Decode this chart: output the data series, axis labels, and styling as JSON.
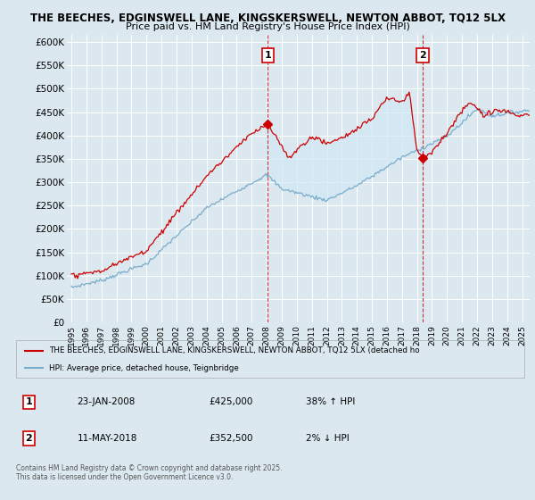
{
  "title_line1": "THE BEECHES, EDGINSWELL LANE, KINGSKERSWELL, NEWTON ABBOT, TQ12 5LX",
  "title_line2": "Price paid vs. HM Land Registry's House Price Index (HPI)",
  "ylabel_ticks": [
    "£0",
    "£50K",
    "£100K",
    "£150K",
    "£200K",
    "£250K",
    "£300K",
    "£350K",
    "£400K",
    "£450K",
    "£500K",
    "£550K",
    "£600K"
  ],
  "ytick_values": [
    0,
    50000,
    100000,
    150000,
    200000,
    250000,
    300000,
    350000,
    400000,
    450000,
    500000,
    550000,
    600000
  ],
  "ylim": [
    0,
    615000
  ],
  "xlim_start": 1994.7,
  "xlim_end": 2025.5,
  "color_price": "#cc0000",
  "color_hpi": "#7aadcc",
  "color_fill": "#d0e8f5",
  "vline_color": "#cc0000",
  "bg_color": "#dce8f0",
  "grid_color": "#ffffff",
  "event1_x": 2008.07,
  "event1_y": 425000,
  "event1_label": "1",
  "event2_x": 2018.37,
  "event2_y": 352500,
  "event2_label": "2",
  "legend_line1": "THE BEECHES, EDGINSWELL LANE, KINGSKERSWELL, NEWTON ABBOT, TQ12 5LX (detached ho",
  "legend_line2": "HPI: Average price, detached house, Teignbridge",
  "table_row1": [
    "1",
    "23-JAN-2008",
    "£425,000",
    "38% ↑ HPI"
  ],
  "table_row2": [
    "2",
    "11-MAY-2018",
    "£352,500",
    "2% ↓ HPI"
  ],
  "footer": "Contains HM Land Registry data © Crown copyright and database right 2025.\nThis data is licensed under the Open Government Licence v3.0.",
  "xtick_years": [
    1995,
    1996,
    1997,
    1998,
    1999,
    2000,
    2001,
    2002,
    2003,
    2004,
    2005,
    2006,
    2007,
    2008,
    2009,
    2010,
    2011,
    2012,
    2013,
    2014,
    2015,
    2016,
    2017,
    2018,
    2019,
    2020,
    2021,
    2022,
    2023,
    2024,
    2025
  ]
}
